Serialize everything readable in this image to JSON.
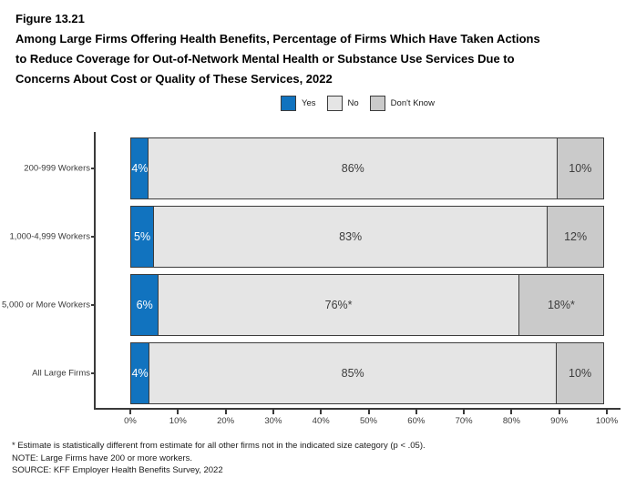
{
  "header": {
    "figure_label": "Figure 13.21",
    "title_lines": [
      "Among Large Firms Offering Health Benefits, Percentage of Firms Which Have Taken Actions",
      "to Reduce Coverage for Out-of-Network Mental Health or Substance Use Services Due to",
      "Concerns About Cost or Quality of These Services, 2022"
    ]
  },
  "chart_data": {
    "type": "bar",
    "orientation": "horizontal",
    "stacked": true,
    "title": "Figure 13.21: Among Large Firms Offering Health Benefits, Percentage of Firms Which Have Taken Actions to Reduce Coverage for Out-of-Network Mental Health or Substance Use Services Due to Concerns About Cost or Quality of These Services, 2022",
    "categories": [
      "200-999 Workers",
      "1,000-4,999 Workers",
      "5,000 or More Workers",
      "All Large Firms"
    ],
    "series": [
      {
        "name": "Yes",
        "color": "#1173BF",
        "label_color": "#FFFFFF",
        "values": [
          4,
          5,
          6,
          4
        ],
        "labels": [
          "4%",
          "5%",
          "6%",
          "4%"
        ]
      },
      {
        "name": "No",
        "color": "#E5E5E5",
        "label_color": "#3D3D3D",
        "values": [
          86,
          83,
          76,
          85
        ],
        "labels": [
          "86%",
          "83%",
          "76%*",
          "85%"
        ]
      },
      {
        "name": "Don't Know",
        "color": "#CACACA",
        "label_color": "#3D3D3D",
        "values": [
          10,
          12,
          18,
          10
        ],
        "labels": [
          "10%",
          "12%",
          "18%*",
          "10%"
        ]
      }
    ],
    "legend": [
      {
        "label": "Yes",
        "color": "#1173BF"
      },
      {
        "label": "No",
        "color": "#E5E5E5"
      },
      {
        "label": "Don't Know",
        "color": "#CACACA"
      }
    ],
    "x_ticks": [
      "0%",
      "10%",
      "20%",
      "30%",
      "40%",
      "50%",
      "60%",
      "70%",
      "80%",
      "90%",
      "100%"
    ],
    "xlim": [
      0,
      100
    ],
    "legend_position": "top-center",
    "grid": false,
    "border_color": "#3C3C3C"
  },
  "footnotes": [
    "* Estimate is statistically different from estimate for all other firms not in the indicated size category (p < .05).",
    "NOTE: Large Firms have 200 or more workers.",
    "SOURCE: KFF Employer Health Benefits Survey, 2022"
  ]
}
